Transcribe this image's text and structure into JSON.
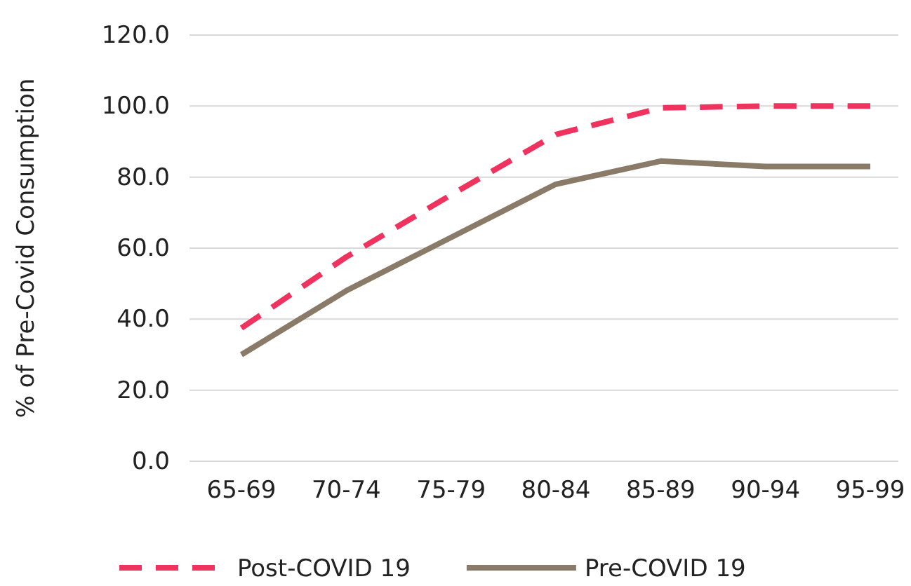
{
  "chart_data": {
    "type": "line",
    "ylabel": "% of Pre-Covid Consumption",
    "categories": [
      "65-69",
      "70-74",
      "75-79",
      "80-84",
      "85-89",
      "90-94",
      "95-99"
    ],
    "series": [
      {
        "name": "Post-COVID 19",
        "color": "#f0325e",
        "line_style": "dashed",
        "values": [
          37.5,
          57.5,
          75,
          92,
          99.5,
          100,
          100
        ]
      },
      {
        "name": "Pre-COVID 19",
        "color": "#8a7b69",
        "line_style": "solid",
        "values": [
          30,
          48,
          63,
          78,
          84.5,
          83,
          83
        ]
      }
    ],
    "ylim": [
      0,
      120
    ],
    "yticks": [
      {
        "value": 0,
        "label": "0.0"
      },
      {
        "value": 20,
        "label": "20.0"
      },
      {
        "value": 40,
        "label": "40.0"
      },
      {
        "value": 60,
        "label": "60.0"
      },
      {
        "value": 80,
        "label": "80.0"
      },
      {
        "value": 100,
        "label": "100.0"
      },
      {
        "value": 120,
        "label": "120.0"
      }
    ],
    "grid": "y",
    "legend": "bottom",
    "marker": "none"
  }
}
